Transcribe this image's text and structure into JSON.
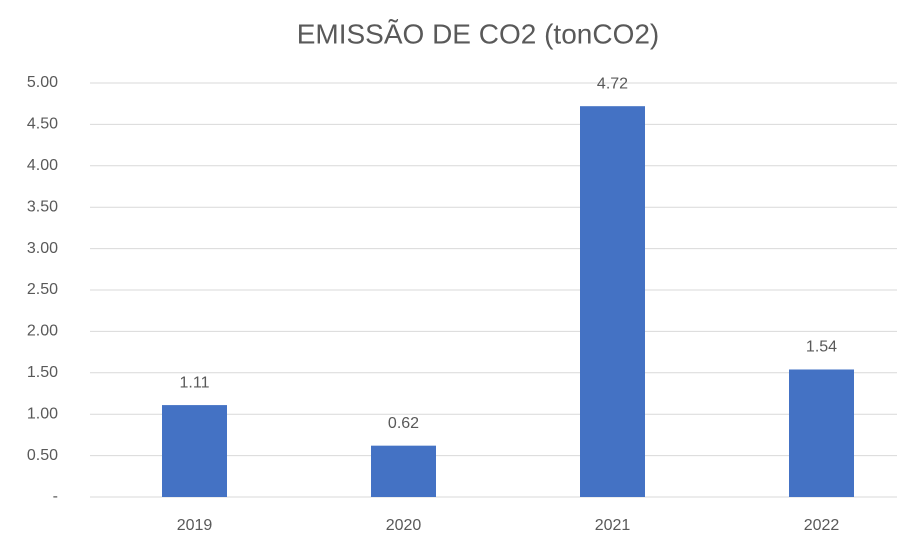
{
  "chart_data": {
    "type": "bar",
    "title": "EMISSÃO DE CO2 (tonCO2)",
    "categories": [
      "2019",
      "2020",
      "2021",
      "2022"
    ],
    "values": [
      1.11,
      0.62,
      4.72,
      1.54
    ],
    "color": "#4472c4",
    "ylim": [
      0,
      5
    ],
    "yticks": [
      {
        "value": 0,
        "label": "-"
      },
      {
        "value": 0.5,
        "label": "0.50"
      },
      {
        "value": 1,
        "label": "1.00"
      },
      {
        "value": 1.5,
        "label": "1.50"
      },
      {
        "value": 2,
        "label": "2.00"
      },
      {
        "value": 2.5,
        "label": "2.50"
      },
      {
        "value": 3,
        "label": "3.00"
      },
      {
        "value": 3.5,
        "label": "3.50"
      },
      {
        "value": 4,
        "label": "4.00"
      },
      {
        "value": 4.5,
        "label": "4.50"
      },
      {
        "value": 5,
        "label": "5.00"
      }
    ],
    "grid": true
  }
}
